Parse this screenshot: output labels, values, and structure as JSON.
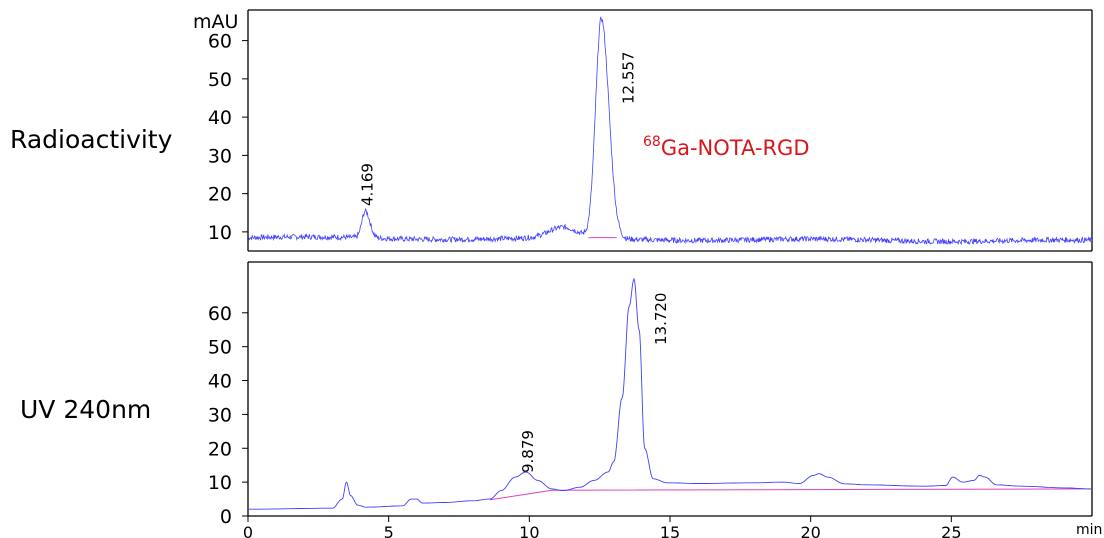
{
  "chart_data": [
    {
      "type": "line",
      "panel_label": "Radioactivity",
      "compound_label": {
        "superscript": "68",
        "text": "Ga-NOTA-RGD"
      },
      "ylabel": "mAU",
      "xlim": [
        0,
        30
      ],
      "ylim": [
        5,
        68
      ],
      "yticks": [
        10,
        20,
        30,
        40,
        50,
        60
      ],
      "line_color": "#4040ff",
      "baseline_color": "#e040c0",
      "baseline_level": 8.5,
      "noise_level": 8.5,
      "peaks": [
        {
          "rt": 4.169,
          "label": "4.169",
          "height": 15.5,
          "width": 0.12
        },
        {
          "rt": 12.557,
          "label": "12.557",
          "height": 66,
          "width": 0.2
        }
      ],
      "integration_baselines": [
        {
          "x": [
            12.1,
            13.1
          ],
          "y": [
            8.5,
            8.5
          ]
        }
      ]
    },
    {
      "type": "line",
      "panel_label": "UV 240nm",
      "xlabel": "min",
      "xlim": [
        0,
        30
      ],
      "ylim": [
        0,
        75
      ],
      "yticks": [
        0,
        10,
        20,
        30,
        40,
        50,
        60
      ],
      "xticks": [
        0,
        5,
        10,
        15,
        20,
        25
      ],
      "line_color": "#4040ff",
      "baseline_color": "#e040c0",
      "series_points": {
        "x": [
          0,
          3.0,
          3.35,
          3.5,
          3.65,
          3.9,
          4.2,
          5.5,
          5.8,
          6.0,
          6.2,
          7.0,
          8.0,
          8.6,
          9.0,
          9.5,
          9.88,
          10.3,
          10.8,
          11.2,
          11.8,
          12.3,
          12.8,
          13.0,
          13.3,
          13.55,
          13.72,
          13.9,
          14.1,
          14.4,
          14.9,
          16.0,
          18.0,
          19.0,
          19.6,
          20.1,
          20.3,
          20.6,
          21.2,
          22.0,
          24.0,
          24.8,
          25.05,
          25.4,
          25.8,
          26.0,
          26.2,
          26.6,
          27.5,
          29.0,
          30.0
        ],
        "y": [
          2,
          2.3,
          5,
          10,
          6,
          3.2,
          2.6,
          3.0,
          5.0,
          5.0,
          3.8,
          4.0,
          4.5,
          5.0,
          7.5,
          11.5,
          13.0,
          10.5,
          8.0,
          7.5,
          8.5,
          10.5,
          13.0,
          16.0,
          35.0,
          62.0,
          70.0,
          55.0,
          20.0,
          11.0,
          9.8,
          9.6,
          9.8,
          10.0,
          9.6,
          12.0,
          12.5,
          11.5,
          9.5,
          9.2,
          8.8,
          9.0,
          11.5,
          10.0,
          10.5,
          12.0,
          11.5,
          9.2,
          8.8,
          8.3,
          8.0
        ]
      },
      "peaks": [
        {
          "rt": 9.879,
          "label": "9.879"
        },
        {
          "rt": 13.72,
          "label": "13.720"
        }
      ],
      "integration_baselines": [
        {
          "x": [
            8.6,
            10.8
          ],
          "y": [
            4.8,
            7.6
          ]
        },
        {
          "x": [
            10.8,
            30.0
          ],
          "y": [
            7.6,
            8.0
          ]
        }
      ]
    }
  ]
}
